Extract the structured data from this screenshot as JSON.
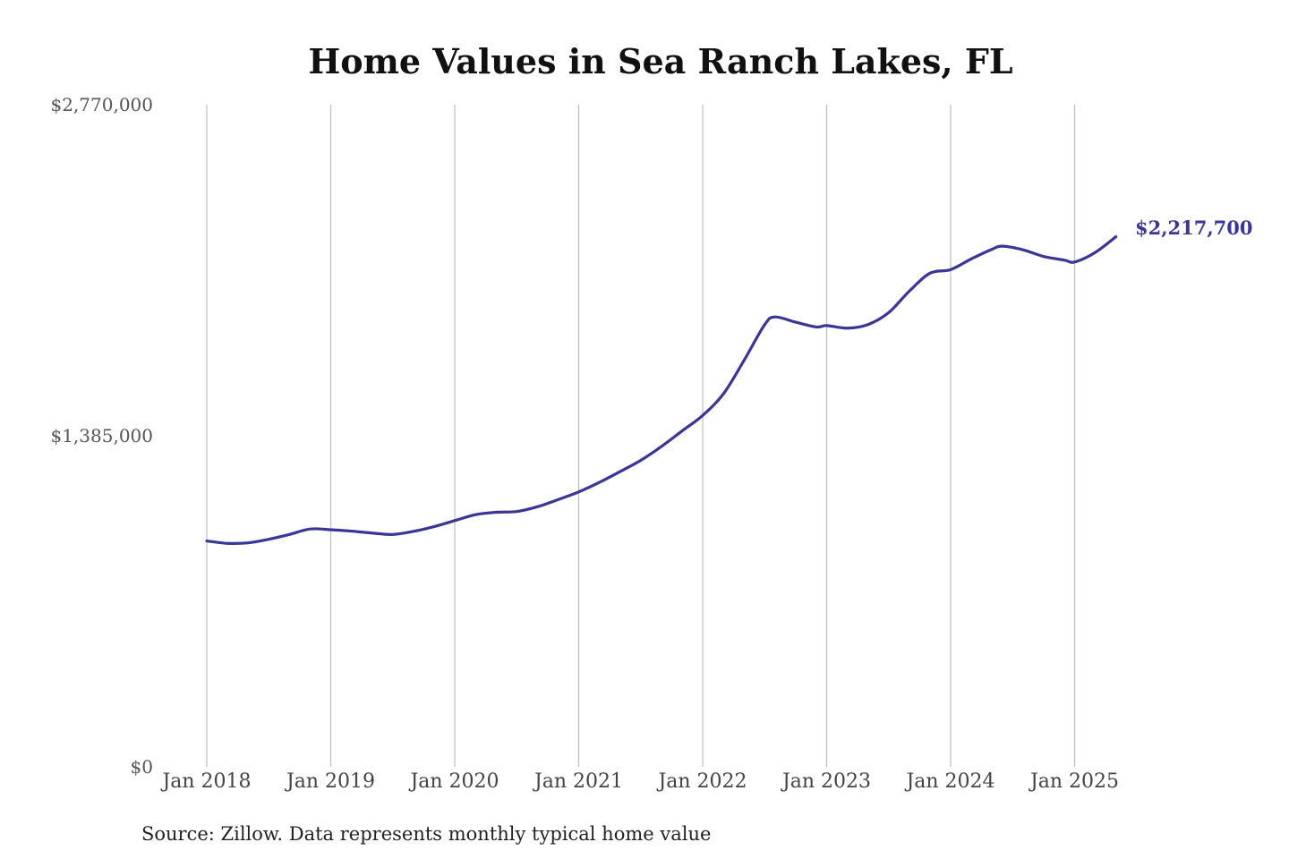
{
  "chart_data": {
    "type": "line",
    "title": "Home Values in Sea Ranch Lakes, FL",
    "source": "Source: Zillow. Data represents monthly typical home value",
    "xlabel": "",
    "ylabel": "",
    "xlim": [
      "2018-01",
      "2025-05"
    ],
    "ylim": [
      0,
      2770000
    ],
    "y_ticks": [
      {
        "value": 0,
        "label": "$0"
      },
      {
        "value": 1385000,
        "label": "$1,385,000"
      },
      {
        "value": 2770000,
        "label": "$2,770,000"
      }
    ],
    "x_ticks": [
      {
        "date": "2018-01",
        "label": "Jan 2018"
      },
      {
        "date": "2019-01",
        "label": "Jan 2019"
      },
      {
        "date": "2020-01",
        "label": "Jan 2020"
      },
      {
        "date": "2021-01",
        "label": "Jan 2021"
      },
      {
        "date": "2022-01",
        "label": "Jan 2022"
      },
      {
        "date": "2023-01",
        "label": "Jan 2023"
      },
      {
        "date": "2024-01",
        "label": "Jan 2024"
      },
      {
        "date": "2025-01",
        "label": "Jan 2025"
      }
    ],
    "grid": {
      "vertical": true,
      "horizontal": false
    },
    "legend": "none",
    "end_label": "$2,217,700",
    "line_color": "#3a3596",
    "series": [
      {
        "x": [
          "2018-01",
          "2018-03",
          "2018-05",
          "2018-07",
          "2018-09",
          "2018-11",
          "2019-01",
          "2019-03",
          "2019-05",
          "2019-07",
          "2019-09",
          "2019-11",
          "2020-01",
          "2020-03",
          "2020-05",
          "2020-07",
          "2020-09",
          "2020-11",
          "2021-01",
          "2021-03",
          "2021-05",
          "2021-07",
          "2021-09",
          "2021-11",
          "2022-01",
          "2022-03",
          "2022-05",
          "2022-07",
          "2022-08",
          "2022-10",
          "2022-12",
          "2023-01",
          "2023-03",
          "2023-05",
          "2023-07",
          "2023-09",
          "2023-11",
          "2024-01",
          "2024-03",
          "2024-05",
          "2024-06",
          "2024-08",
          "2024-10",
          "2024-12",
          "2025-01",
          "2025-03",
          "2025-05"
        ],
        "values": [
          945000,
          935000,
          937000,
          952000,
          972000,
          995000,
          992000,
          986000,
          978000,
          972000,
          985000,
          1005000,
          1030000,
          1055000,
          1065000,
          1068000,
          1088000,
          1118000,
          1150000,
          1190000,
          1235000,
          1282000,
          1340000,
          1405000,
          1470000,
          1560000,
          1700000,
          1850000,
          1882000,
          1860000,
          1840000,
          1846000,
          1835000,
          1850000,
          1900000,
          1990000,
          2065000,
          2080000,
          2125000,
          2165000,
          2178000,
          2163000,
          2135000,
          2120000,
          2112000,
          2152000,
          2217700
        ]
      }
    ]
  }
}
